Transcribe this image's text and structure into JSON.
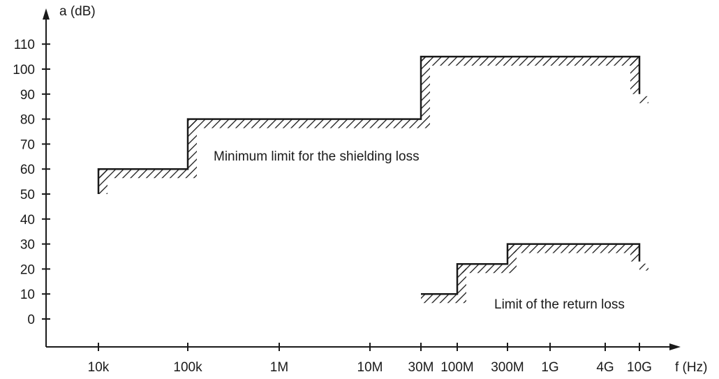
{
  "chart_data": {
    "type": "line",
    "xlabel": "f (Hz)",
    "ylabel": "a (dB)",
    "x_categories": [
      "10k",
      "100k",
      "1M",
      "10M",
      "30M",
      "100M",
      "300M",
      "1G",
      "4G",
      "10G"
    ],
    "yticks": [
      0,
      10,
      20,
      30,
      40,
      50,
      60,
      70,
      80,
      90,
      100,
      110
    ],
    "y_tick_labels": [
      "0",
      "10",
      "20",
      "30",
      "40",
      "50",
      "60",
      "70",
      "80",
      "90",
      "100",
      "110"
    ],
    "ylim": [
      -10,
      120
    ],
    "grid": false,
    "series": [
      {
        "hatch": "below",
        "points": [
          [
            "10k",
            50
          ],
          [
            "10k",
            60
          ],
          [
            "100k",
            60
          ],
          [
            "100k",
            80
          ],
          [
            "30M",
            80
          ],
          [
            "30M",
            105
          ],
          [
            "10G",
            105
          ],
          [
            "10G",
            90
          ]
        ]
      },
      {
        "hatch": "below",
        "points": [
          [
            "30M",
            10
          ],
          [
            "100M",
            10
          ],
          [
            "100M",
            22
          ],
          [
            "300M",
            22
          ],
          [
            "300M",
            30
          ],
          [
            "10G",
            30
          ],
          [
            "10G",
            23
          ]
        ]
      }
    ],
    "annotations": [
      {
        "text": "Minimum limit for the shielding loss",
        "x": "1M",
        "y": 65
      },
      {
        "text": "Limit of the return loss",
        "x": "300M",
        "y": 7
      }
    ]
  }
}
